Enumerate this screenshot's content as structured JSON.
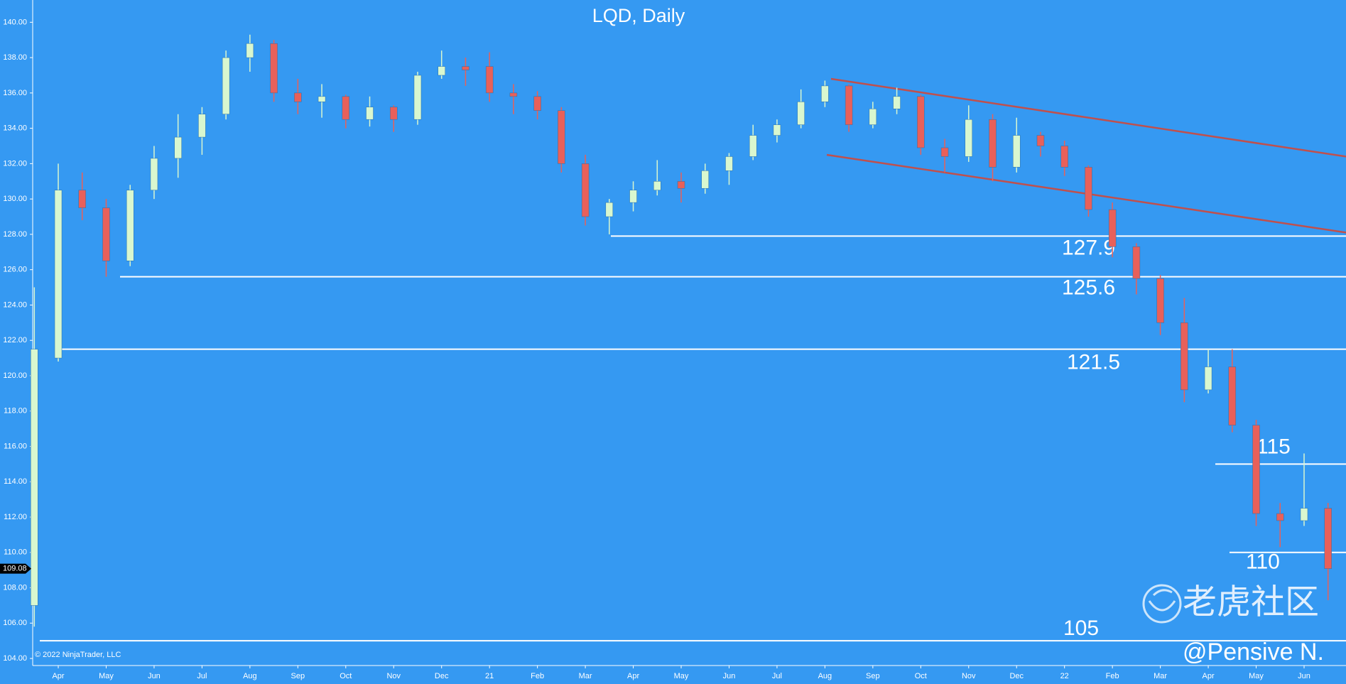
{
  "chart_data": {
    "type": "candlestick",
    "title": "LQD, Daily",
    "categories": [
      null,
      "Apr",
      null,
      "May",
      null,
      "Jun",
      null,
      "Jul",
      null,
      "Aug",
      null,
      "Sep",
      null,
      "Oct",
      null,
      "Nov",
      null,
      "Dec",
      null,
      "21",
      null,
      "Feb",
      null,
      "Mar",
      null,
      "Apr",
      null,
      "May",
      null,
      "Jun",
      null,
      "Jul",
      null,
      "Aug",
      null,
      "Sep",
      null,
      "Oct",
      null,
      "Nov",
      null,
      "Dec",
      null,
      "22",
      null,
      "Feb",
      null,
      "Mar",
      null,
      "Apr",
      null,
      "May",
      null,
      "Jun",
      null
    ],
    "open": [
      107,
      121,
      130.5,
      129.5,
      126.5,
      130.5,
      132.3,
      133.5,
      134.8,
      138,
      138.8,
      136,
      135.5,
      135.8,
      134.5,
      135.2,
      134.5,
      137,
      137.5,
      137.5,
      136,
      135.8,
      135,
      132,
      129,
      129.8,
      130.5,
      131,
      130.6,
      131.6,
      132.4,
      133.6,
      134.2,
      135.5,
      136.4,
      134.2,
      135.1,
      135.8,
      132.9,
      132.4,
      134.5,
      131.8,
      133.6,
      133,
      131.8,
      129.4,
      127.3,
      125.5,
      123,
      119.2,
      120.5,
      117.2,
      112.2,
      111.8,
      112.5
    ],
    "high": [
      125,
      132,
      131.5,
      130,
      130.8,
      133,
      134.8,
      135.2,
      138.4,
      139.3,
      139,
      136.8,
      136.5,
      135.9,
      135.8,
      135.3,
      137.2,
      138.4,
      138,
      138.3,
      136.5,
      136.1,
      135.2,
      132.5,
      130,
      131,
      132.2,
      131.5,
      132,
      132.6,
      134.2,
      134.5,
      136.2,
      136.7,
      136.5,
      135.5,
      136.3,
      135.9,
      133.4,
      135.3,
      134.8,
      134.6,
      133.8,
      133.3,
      131.9,
      129.8,
      127.5,
      125.7,
      124.4,
      121.5,
      121.5,
      117.5,
      112.8,
      115.6,
      112.8
    ],
    "low": [
      105.8,
      120.8,
      128.8,
      125.6,
      126.2,
      130,
      131.2,
      132.5,
      134.5,
      137.2,
      135.5,
      134.8,
      134.6,
      134,
      134.1,
      133.8,
      134.2,
      136.8,
      136.4,
      135.5,
      134.8,
      134.5,
      131.5,
      128.5,
      128,
      129.3,
      130.2,
      129.8,
      130.3,
      130.8,
      132.2,
      133.2,
      134,
      135.2,
      133.8,
      134,
      134.8,
      132.5,
      131.5,
      132.1,
      131,
      131.5,
      132.4,
      131.3,
      129,
      126.7,
      124.6,
      122.3,
      118.5,
      119,
      116.8,
      111.5,
      110.3,
      111.5,
      107.3
    ],
    "close": [
      121.5,
      130.5,
      129.5,
      126.5,
      130.5,
      132.3,
      133.5,
      134.8,
      138,
      138.8,
      136,
      135.5,
      135.8,
      134.5,
      135.2,
      134.5,
      137,
      137.5,
      137.3,
      136,
      135.8,
      135,
      132,
      129,
      129.8,
      130.5,
      131,
      130.6,
      131.6,
      132.4,
      133.6,
      134.2,
      135.5,
      136.4,
      134.2,
      135.1,
      135.8,
      132.9,
      132.4,
      134.5,
      131.8,
      133.6,
      133,
      131.8,
      129.4,
      127.3,
      125.5,
      123,
      119.2,
      120.5,
      117.2,
      112.2,
      111.8,
      112.5,
      109.08
    ],
    "up_color": "#d9f7cf",
    "down_color": "#e8605a",
    "ylim": [
      103.6,
      141.26
    ],
    "yticks": [
      {
        "value": 104,
        "label": "104.00"
      },
      {
        "value": 106,
        "label": "106.00"
      },
      {
        "value": 108,
        "label": "108.00"
      },
      {
        "value": 110,
        "label": "110.00"
      },
      {
        "value": 112,
        "label": "112.00"
      },
      {
        "value": 114,
        "label": "114.00"
      },
      {
        "value": 116,
        "label": "116.00"
      },
      {
        "value": 118,
        "label": "118.00"
      },
      {
        "value": 120,
        "label": "120.00"
      },
      {
        "value": 122,
        "label": "122.00"
      },
      {
        "value": 124,
        "label": "124.00"
      },
      {
        "value": 126,
        "label": "126.00"
      },
      {
        "value": 128,
        "label": "128.00"
      },
      {
        "value": 130,
        "label": "130.00"
      },
      {
        "value": 132,
        "label": "132.00"
      },
      {
        "value": 134,
        "label": "134.00"
      },
      {
        "value": 136,
        "label": "136.00"
      },
      {
        "value": 138,
        "label": "138.00"
      },
      {
        "value": 140,
        "label": "140.00"
      }
    ],
    "levels": [
      127.9,
      125.6,
      121.5,
      115,
      110,
      105
    ],
    "trendlines": [
      [
        136.8,
        132.4
      ],
      [
        132.5,
        128.1
      ]
    ],
    "trendline_color": "#c0504d",
    "last_price": 109.08,
    "copyright": "© 2022 NinjaTrader, LLC",
    "watermark": "老虎社区",
    "credit": "@Pensive N."
  }
}
